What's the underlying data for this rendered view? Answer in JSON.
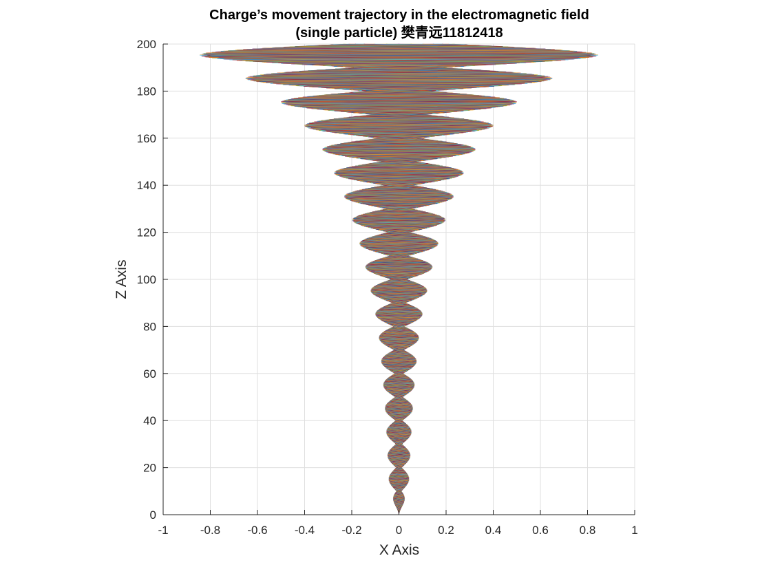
{
  "chart_data": {
    "type": "line",
    "title": "Charge’s movement trajectory in the electromagnetic field",
    "subtitle": "(single particle) 樊青远11812418",
    "xlabel": "X Axis",
    "ylabel": "Z Axis",
    "xlim": [
      -1,
      1
    ],
    "ylim": [
      0,
      200
    ],
    "xticks": [
      -1,
      -0.8,
      -0.6,
      -0.4,
      -0.2,
      0,
      0.2,
      0.4,
      0.6,
      0.8,
      1
    ],
    "xtick_labels": [
      "-1",
      "-0.8",
      "-0.6",
      "-0.4",
      "-0.2",
      "0",
      "0.2",
      "0.4",
      "0.6",
      "0.8",
      "1"
    ],
    "yticks": [
      0,
      20,
      40,
      60,
      80,
      100,
      120,
      140,
      160,
      180,
      200
    ],
    "ytick_labels": [
      "0",
      "20",
      "40",
      "60",
      "80",
      "100",
      "120",
      "140",
      "160",
      "180",
      "200"
    ],
    "grid": true,
    "legend": "none",
    "envelope": {
      "description_points_z": [
        0,
        10,
        20,
        30,
        40,
        60,
        80,
        100,
        120,
        140,
        160,
        180,
        200
      ],
      "half_width_x": [
        0,
        0.04,
        0.045,
        0.05,
        0.055,
        0.07,
        0.09,
        0.13,
        0.18,
        0.25,
        0.35,
        0.55,
        0.94
      ]
    },
    "oscillation_period_z": 10,
    "series_colors": [
      "#0072BD",
      "#D95319",
      "#EDB120",
      "#7E2F8E",
      "#77AC30",
      "#4DBEEE",
      "#A2142F"
    ]
  }
}
